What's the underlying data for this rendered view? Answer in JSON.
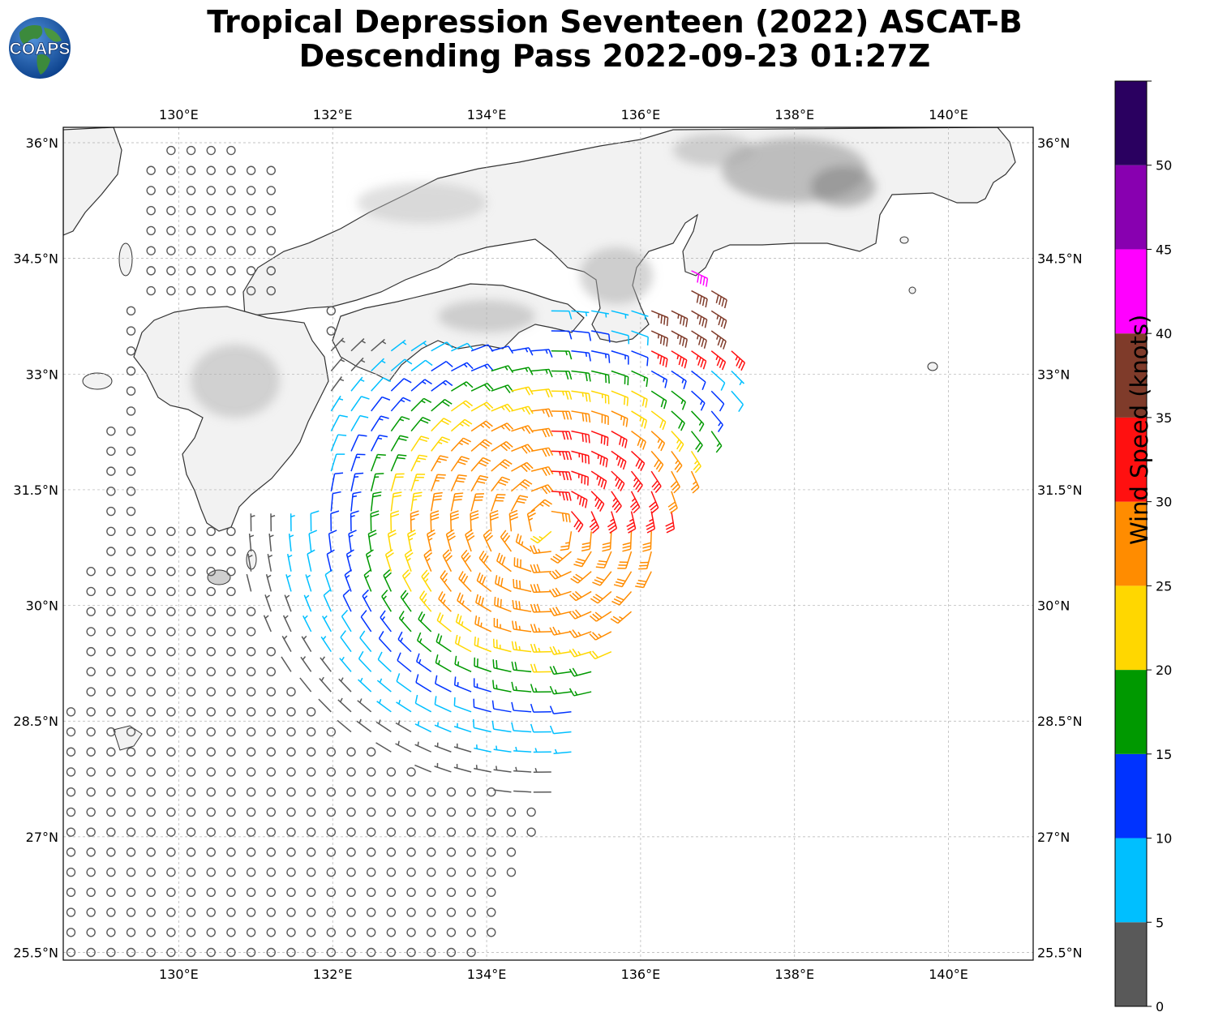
{
  "title": {
    "line1": "Tropical Depression Seventeen (2022) ASCAT-B",
    "line2": "Descending Pass 2022-09-23 01:27Z"
  },
  "logo": {
    "text": "COAPS"
  },
  "map": {
    "lon_range": [
      128.5,
      141.1
    ],
    "lat_range": [
      25.4,
      36.2
    ],
    "lon_ticks": [
      "130°E",
      "132°E",
      "134°E",
      "136°E",
      "138°E",
      "140°E"
    ],
    "lat_ticks": [
      "25.5°N",
      "27°N",
      "28.5°N",
      "30°N",
      "31.5°N",
      "33°N",
      "34.5°N",
      "36°N"
    ],
    "storm_center": {
      "lon": 134.8,
      "lat": 31.0
    },
    "swath_note": "ASCAT-B descending swath of wind barbs over the ocean south of Japan"
  },
  "colorbar": {
    "label": "Wind Speed (knots)",
    "ticks": [
      "0",
      "5",
      "10",
      "15",
      "20",
      "25",
      "30",
      "35",
      "40",
      "45",
      "50"
    ],
    "bins": [
      {
        "range": [
          0,
          5
        ],
        "color": "#595959"
      },
      {
        "range": [
          5,
          10
        ],
        "color": "#00bfff"
      },
      {
        "range": [
          10,
          15
        ],
        "color": "#0033ff"
      },
      {
        "range": [
          15,
          20
        ],
        "color": "#009900"
      },
      {
        "range": [
          20,
          25
        ],
        "color": "#ffd700"
      },
      {
        "range": [
          25,
          30
        ],
        "color": "#ff8c00"
      },
      {
        "range": [
          30,
          35
        ],
        "color": "#ff1010"
      },
      {
        "range": [
          35,
          40
        ],
        "color": "#7f3b2a"
      },
      {
        "range": [
          40,
          45
        ],
        "color": "#ff00ff"
      },
      {
        "range": [
          45,
          50
        ],
        "color": "#8800b0"
      },
      {
        "range": [
          50,
          55
        ],
        "color": "#2a0060"
      }
    ]
  }
}
